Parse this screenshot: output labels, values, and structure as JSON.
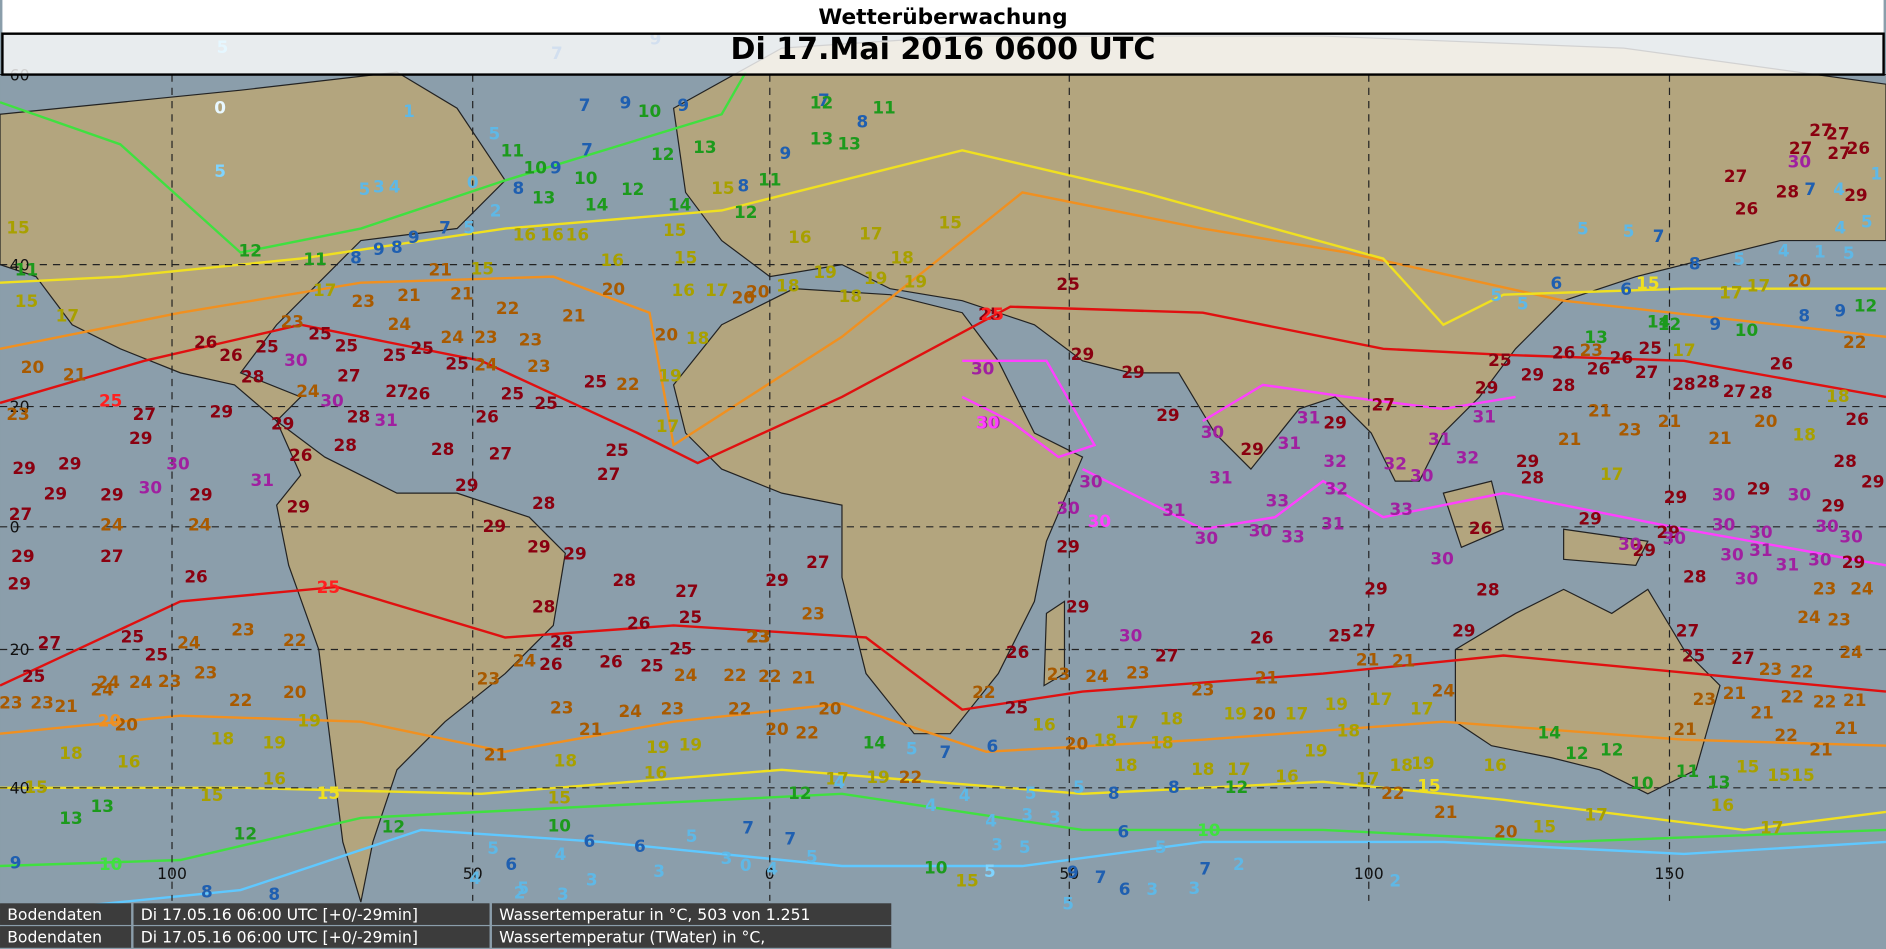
{
  "header": {
    "title": "Wetterüberwachung",
    "datetime": "Di 17.Mai 2016 0600 UTC"
  },
  "grid": {
    "lat_labels": [
      60,
      40,
      20,
      0,
      20,
      40
    ],
    "lon_labels": [
      100,
      50,
      0,
      50,
      100,
      150
    ]
  },
  "isotherm_labels": [
    5,
    0,
    5,
    25,
    25,
    25,
    30,
    30,
    15,
    10,
    5,
    10,
    15,
    15,
    20
  ],
  "stations": [
    7,
    9,
    5,
    1,
    7,
    9,
    10,
    9,
    10,
    9,
    7,
    11,
    12,
    13,
    10,
    13,
    8,
    12,
    14,
    14,
    15,
    16,
    16,
    16,
    16,
    20,
    15,
    16,
    17,
    20,
    5,
    4,
    3,
    0,
    2,
    5,
    7,
    9,
    8,
    9,
    8,
    11,
    12,
    15,
    11,
    15,
    17,
    20,
    21,
    23,
    17,
    23,
    21,
    21,
    15,
    21,
    22,
    21,
    23,
    23,
    24,
    24,
    23,
    25,
    22,
    25,
    25,
    24,
    25,
    25,
    25,
    23,
    25,
    26,
    26,
    30,
    28,
    24,
    27,
    27,
    26,
    28,
    31,
    30,
    29,
    29,
    27,
    29,
    30,
    29,
    29,
    29,
    29,
    30,
    29,
    31,
    26,
    28,
    28,
    27,
    26,
    25,
    25,
    25,
    27,
    29,
    28,
    27,
    24,
    24,
    29,
    29,
    29,
    27,
    29,
    26,
    29,
    29,
    28,
    27,
    29,
    27,
    28,
    28,
    26,
    25,
    23,
    23,
    27,
    25,
    25,
    25,
    24,
    23,
    23,
    22,
    24,
    24,
    23,
    23,
    23,
    21,
    24,
    22,
    20,
    20,
    18,
    19,
    19,
    18,
    16,
    24,
    26,
    26,
    25,
    25,
    24,
    22,
    22,
    21,
    23,
    23,
    23,
    24,
    23,
    22,
    20,
    22,
    20,
    21,
    19,
    19,
    18,
    21,
    16,
    16,
    15,
    15,
    15,
    12,
    17,
    19,
    14,
    22,
    13,
    13,
    12,
    12,
    10,
    9,
    6,
    6,
    5,
    7,
    7,
    5,
    4,
    5,
    6,
    5,
    3,
    0,
    4,
    3,
    3,
    4,
    8,
    8,
    2,
    3,
    7,
    8,
    11,
    12,
    13,
    13,
    9,
    11,
    8,
    15,
    12,
    16,
    17,
    18,
    19,
    19,
    18,
    19,
    18,
    15,
    18,
    20,
    19,
    17,
    20,
    25,
    25,
    30,
    30,
    29,
    29,
    29,
    30,
    29,
    31,
    33,
    31,
    29,
    32,
    32,
    31,
    33,
    30,
    30,
    31,
    31,
    32,
    31,
    32,
    31,
    29,
    25,
    33,
    30,
    27,
    29,
    28,
    26,
    23,
    26,
    26,
    25,
    27,
    28,
    28,
    27,
    28,
    26,
    22,
    26,
    28,
    29,
    29,
    30,
    29,
    30,
    29,
    29,
    30,
    30,
    30,
    31,
    30,
    29,
    30,
    30,
    30,
    31,
    30,
    28,
    29,
    30,
    29,
    28,
    29,
    21,
    21,
    23,
    21,
    21,
    20,
    18,
    18,
    17,
    17,
    14,
    13,
    12,
    9,
    10,
    8,
    9,
    12,
    17,
    17,
    20,
    8,
    5,
    4,
    1,
    5,
    5,
    5,
    6,
    6,
    5,
    5,
    7,
    4,
    5,
    7,
    4,
    1,
    29,
    30,
    28,
    27,
    27,
    27,
    26,
    27,
    26,
    27,
    29,
    30,
    30,
    29,
    26,
    30,
    27,
    26,
    25,
    27,
    29,
    29,
    30,
    28,
    26,
    27,
    25,
    27,
    23,
    22,
    23,
    24,
    23,
    24,
    24,
    22,
    25,
    23,
    24,
    23,
    23,
    21,
    21,
    21,
    24,
    23,
    21,
    21,
    22,
    22,
    21,
    21,
    21,
    22,
    21,
    19,
    20,
    17,
    19,
    17,
    17,
    18,
    17,
    18,
    16,
    20,
    18,
    18,
    18,
    18,
    17,
    19,
    18,
    19,
    16,
    14,
    12,
    12,
    10,
    11,
    13,
    15,
    15,
    15,
    16,
    17,
    17,
    15,
    20,
    21,
    22,
    17,
    16,
    12,
    8,
    8,
    5,
    5,
    6,
    7,
    5,
    4,
    4,
    4,
    4,
    3,
    3,
    5,
    3,
    6,
    5,
    2,
    7,
    7,
    6,
    3,
    3,
    5,
    9,
    15,
    10,
    2
  ],
  "footer": {
    "rows": [
      [
        "Bodendaten",
        "Di 17.05.16 06:00 UTC [+0/-29min]",
        "Wassertemperatur in °C, 503 von 1.251"
      ],
      [
        "Bodendaten",
        "Di 17.05.16 06:00 UTC [+0/-29min]",
        "Wassertemperatur (TWater) in °C,"
      ]
    ]
  }
}
